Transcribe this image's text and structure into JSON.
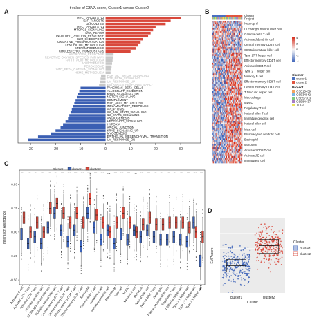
{
  "panels": {
    "A": {
      "letter": "A",
      "chart_data": {
        "type": "bar",
        "title": "t value of GSVA score, Cluster1 versus Cluster2",
        "xlim": [
          -35,
          38
        ],
        "xticks": [
          -30,
          -20,
          -10,
          0,
          10,
          20,
          30
        ],
        "bar_colors": {
          "positive": "#d9483b",
          "neutral": "#c8c8c8",
          "negative": "#3b5fb3"
        },
        "categories": [
          "MYC_TARGETS_V2",
          "E2F_TARGETS",
          "GLYCOLYSIS",
          "MYC_TARGETS_V1",
          "MTORC1_SIGNALING",
          "DNA_REPAIR",
          "UNFOLDED_PROTEIN_RESPONSE",
          "G2M_CHECKPOINT",
          "OXIDATIVE_PHOSPHORYLATION",
          "XENOBIOTIC_METABOLISM",
          "SPERMATOGENESIS",
          "CHOLESTEROL_HOMEOSTASIS",
          "ANDROGEN_RESPONSE",
          "REACTIVE_OXYGEN_SPECIES_PATHWAY",
          "FATTY_ACID_METABOLISM",
          "ADIPOGENESIS",
          "PEROXISOME",
          "WNT_BETA_CATENIN_SIGNALING",
          "HEME_METABOLISM",
          "PI3K_AKT_MTOR_SIGNALING",
          "TGF_BETA_SIGNALING",
          "UV_RESPONSE_UP",
          "ESTROGEN_RESPONSE_EARLY",
          "PANCREAS_BETA_CELLS",
          "ALLOGRAFT_REJECTION",
          "KRAS_SIGNALING_DN",
          "NOTCH_SIGNALING",
          "COMPLEMENT",
          "BILE_ACID_METABOLISM",
          "INFLAMMATORY_RESPONSE",
          "APOPTOSIS",
          "IL6_JAK_STAT3_SIGNALING",
          "IL2_STAT5_SIGNALING",
          "ANGIOGENESIS",
          "HEDGEHOG_SIGNALING",
          "HYPOXIA",
          "APICAL_JUNCTION",
          "KRAS_SIGNALING_UP",
          "MYOGENESIS",
          "EPITHELIAL_MESENCHYMAL_TRANSITION",
          "UV_RESPONSE_DN"
        ],
        "values": [
          30,
          26,
          24,
          20,
          19,
          18,
          17,
          15,
          14,
          13,
          12,
          10,
          3.2,
          3.0,
          2.8,
          2.6,
          2.4,
          2.2,
          2.0,
          -1.8,
          -2.0,
          -2.3,
          -2.6,
          -10,
          -10.5,
          -11,
          -11.5,
          -12,
          -12.5,
          -13,
          -13.5,
          -14,
          -14.5,
          -15,
          -16,
          -17,
          -18,
          -20,
          -22,
          -27,
          -31
        ]
      }
    },
    "B": {
      "letter": "B",
      "chart_data": {
        "type": "heatmap",
        "annotation_rows": [
          "Cluster",
          "Project"
        ],
        "rows": [
          "Neutrophil",
          "CD56bright natural killer cell",
          "Gamma delta T cell",
          "Activated dendritic cell",
          "Central memory CD8 T cell",
          "CD56dim natural killer cell",
          "Type 17 T helper cell",
          "Effector memory CD4 T cell",
          "Activated CD4 T cell",
          "Type 2 T helper cell",
          "Memory B cell",
          "Effector memory CD8 T cell",
          "Central memory CD4 T cell",
          "T follicular helper cell",
          "Macrophage",
          "MDSC",
          "Regulatory T cell",
          "Natural killer T cell",
          "Immature dendritic cell",
          "Natural killer cell",
          "Mast cell",
          "Plasmacytoid dendritic cell",
          "Eosinophil",
          "Monocyte",
          "Activated CD8 T cell",
          "Activated B cell",
          "Immature B cell"
        ],
        "colorbar": {
          "title": "",
          "ticks": [
            "4",
            "2",
            "0",
            "-2",
            "-4"
          ],
          "high": "#d7301f",
          "mid": "#f7f7f7",
          "low": "#3b62b8"
        },
        "legend_cluster": {
          "title": "Cluster",
          "items": [
            {
              "name": "cluster1",
              "color": "#4a6fc0"
            },
            {
              "name": "cluster2",
              "color": "#e0553f"
            }
          ]
        },
        "legend_project": {
          "title": "Project",
          "items": [
            {
              "name": "GSE15459",
              "color": "#f2a35c"
            },
            {
              "name": "GSE34942",
              "color": "#79b6e2"
            },
            {
              "name": "GSE57303",
              "color": "#7fc97f"
            },
            {
              "name": "GSE84437",
              "color": "#a77dc2"
            },
            {
              "name": "TCGA",
              "color": "#e8e25a"
            }
          ]
        }
      }
    },
    "C": {
      "letter": "C",
      "chart_data": {
        "type": "box",
        "ylabel": "Infiltration Abundance",
        "ylim": [
          -0.55,
          0.65
        ],
        "yticks": [
          "0.50",
          "0.25",
          "0.00",
          "-0.25",
          "-0.50"
        ],
        "legend": {
          "title": "Cluster",
          "items": [
            {
              "name": "cluster1",
              "color": "#3b62b8"
            },
            {
              "name": "cluster2",
              "color": "#d9483b"
            }
          ]
        },
        "significance": [
          "***",
          "***",
          "***",
          "***",
          "***",
          "***",
          "***",
          "***",
          "***",
          "***",
          "***",
          "***",
          "***",
          "ns",
          "***",
          "***",
          "***",
          "ns",
          "***",
          "***",
          "***",
          "***",
          "***",
          "***",
          "***",
          "***",
          "***",
          "***"
        ],
        "categories": [
          "Activated B cell",
          "Activated CD4 T cell",
          "Activated CD8 T cell",
          "Activated dendritic cell",
          "CD56bright natural killer cell",
          "CD56dim natural killer cell",
          "Central memory CD4 T cell",
          "Central memory CD8 T cell",
          "Effector memory CD4 T cell",
          "Effector memory CD8 T cell",
          "Eosinophil",
          "Gamma delta T cell",
          "Immature B cell",
          "Immature dendritic cell",
          "Macrophage",
          "Mast cell",
          "MDSC",
          "Memory B cell",
          "Monocyte",
          "Natural killer cell",
          "Natural killer T cell",
          "Neutrophil",
          "Plasmacytoid dendritic cell",
          "Regulatory T cell",
          "T follicular helper cell",
          "Type 1 T helper cell",
          "Type 17 T helper cell",
          "Type 2 T helper cell"
        ],
        "cluster1_medians": [
          -0.02,
          -0.12,
          -0.05,
          -0.12,
          0.05,
          0.2,
          0.02,
          -0.1,
          0.02,
          -0.15,
          0.2,
          0.05,
          -0.08,
          0.02,
          -0.12,
          -0.02,
          -0.08,
          0.02,
          -0.05,
          0.02,
          -0.05,
          -0.08,
          -0.08,
          -0.05,
          -0.08,
          -0.1,
          0.1,
          -0.3
        ],
        "cluster2_medians": [
          0.15,
          0.0,
          0.1,
          0.0,
          0.25,
          0.3,
          0.2,
          0.1,
          0.2,
          0.1,
          0.35,
          0.18,
          0.1,
          0.0,
          0.1,
          0.2,
          0.1,
          0.0,
          0.08,
          0.15,
          0.08,
          0.08,
          0.1,
          0.1,
          0.1,
          0.05,
          0.0,
          -0.05
        ]
      }
    },
    "D": {
      "letter": "D",
      "chart_data": {
        "type": "box",
        "xlabel": "Cluster",
        "ylabel": "EMPscore",
        "categories": [
          "cluster1",
          "cluster2"
        ],
        "legend": {
          "title": "Cluster",
          "items": [
            {
              "name": "cluster1",
              "color": "#3b62b8"
            },
            {
              "name": "cluster2",
              "color": "#d9483b"
            }
          ]
        },
        "medians": [
          0.42,
          0.58
        ],
        "q1": [
          0.37,
          0.52
        ],
        "q3": [
          0.47,
          0.63
        ]
      }
    }
  }
}
